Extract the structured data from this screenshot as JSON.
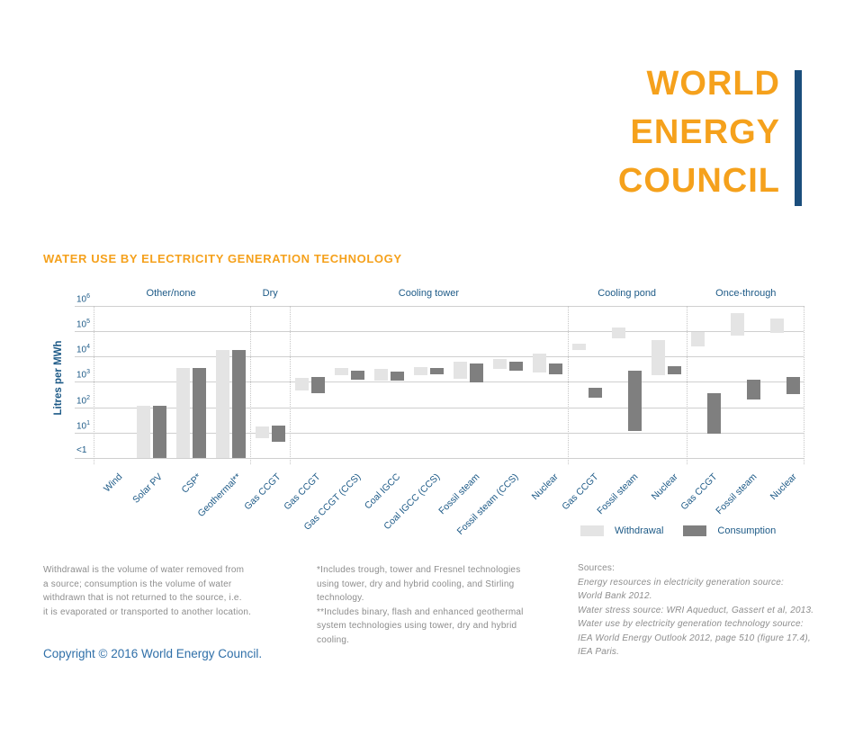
{
  "logo": {
    "lines": [
      "WORLD",
      "ENERGY",
      "COUNCIL"
    ],
    "text_color": "#f5a11c",
    "bar_color": "#1b4e7c"
  },
  "chart_data": {
    "type": "bar",
    "subtype": "floating_range_bars",
    "title": "WATER USE BY ELECTRICITY GENERATION TECHNOLOGY",
    "ylabel": "Litres per MWh",
    "y_scale": "log10",
    "y_ticks": [
      {
        "base": "10",
        "exp": "6"
      },
      {
        "base": "10",
        "exp": "5"
      },
      {
        "base": "10",
        "exp": "4"
      },
      {
        "base": "10",
        "exp": "3"
      },
      {
        "base": "10",
        "exp": "2"
      },
      {
        "base": "10",
        "exp": "1"
      },
      {
        "base": "<1",
        "exp": ""
      }
    ],
    "y_range": [
      1,
      1000000
    ],
    "grid": true,
    "legend_position": "bottom-right",
    "series_names": [
      "Withdrawal",
      "Consumption"
    ],
    "legend": [
      {
        "label": "Withdrawal",
        "color": "#e4e4e4"
      },
      {
        "label": "Consumption",
        "color": "#7f7f7f"
      }
    ],
    "groups": [
      "Other/none",
      "Dry",
      "Cooling tower",
      "Cooling pond",
      "Once-through"
    ],
    "categories": [
      {
        "label": "Wind",
        "group": "Other/none",
        "withdrawal": null,
        "consumption": null
      },
      {
        "label": "Solar PV",
        "group": "Other/none",
        "withdrawal": [
          1,
          110
        ],
        "consumption": [
          1,
          110
        ]
      },
      {
        "label": "CSP*",
        "group": "Other/none",
        "withdrawal": [
          1,
          3500
        ],
        "consumption": [
          1,
          3500
        ]
      },
      {
        "label": "Geothermal**",
        "group": "Other/none",
        "withdrawal": [
          1,
          18000
        ],
        "consumption": [
          1,
          18000
        ]
      },
      {
        "label": "Gas CCGT",
        "group": "Dry",
        "withdrawal": [
          6,
          18
        ],
        "consumption": [
          4.5,
          19
        ]
      },
      {
        "label": "Gas CCGT",
        "group": "Cooling tower",
        "withdrawal": [
          460,
          1400
        ],
        "consumption": [
          370,
          1550
        ]
      },
      {
        "label": "Gas CCGT (CCS)",
        "group": "Cooling tower",
        "withdrawal": [
          1900,
          3500
        ],
        "consumption": [
          1250,
          2800
        ]
      },
      {
        "label": "Coal IGCC",
        "group": "Cooling tower",
        "withdrawal": [
          1100,
          3300
        ],
        "consumption": [
          1100,
          2600
        ]
      },
      {
        "label": "Coal IGCC (CCS)",
        "group": "Cooling tower",
        "withdrawal": [
          1800,
          3700
        ],
        "consumption": [
          2000,
          3500
        ]
      },
      {
        "label": "Fossil steam",
        "group": "Cooling tower",
        "withdrawal": [
          1300,
          6100
        ],
        "consumption": [
          950,
          5300
        ]
      },
      {
        "label": "Fossil steam (CCS)",
        "group": "Cooling tower",
        "withdrawal": [
          3300,
          7900
        ],
        "consumption": [
          2700,
          6400
        ]
      },
      {
        "label": "Nuclear",
        "group": "Cooling tower",
        "withdrawal": [
          2400,
          12600
        ],
        "consumption": [
          2000,
          5300
        ]
      },
      {
        "label": "Gas CCGT",
        "group": "Cooling pond",
        "withdrawal": [
          17500,
          32000
        ],
        "consumption": [
          230,
          580
        ]
      },
      {
        "label": "Fossil steam",
        "group": "Cooling pond",
        "withdrawal": [
          54000,
          138000
        ],
        "consumption": [
          12,
          2800
        ]
      },
      {
        "label": "Nuclear",
        "group": "Cooling pond",
        "withdrawal": [
          1800,
          45000
        ],
        "consumption": [
          2000,
          4300
        ]
      },
      {
        "label": "Gas CCGT",
        "group": "Once-through",
        "withdrawal": [
          25000,
          90000
        ],
        "consumption": [
          9,
          350
        ]
      },
      {
        "label": "Fossil steam",
        "group": "Once-through",
        "withdrawal": [
          70000,
          500000
        ],
        "consumption": [
          200,
          1250
        ]
      },
      {
        "label": "Nuclear",
        "group": "Once-through",
        "withdrawal": [
          85000,
          310000
        ],
        "consumption": [
          320,
          1560
        ]
      }
    ]
  },
  "footnotes": {
    "definition": {
      "lines": [
        "Withdrawal is the volume of water removed from",
        "a source; consumption is the volume of water",
        "withdrawn that is not returned to the source, i.e.",
        "it is evaporated or transported to another location."
      ]
    },
    "technology": {
      "lines": [
        "*Includes trough, tower and Fresnel technologies",
        "using tower, dry and hybrid cooling, and Stirling",
        "technology.",
        "**Includes binary, flash and enhanced geothermal",
        "system technologies using tower, dry and hybrid",
        "cooling."
      ]
    },
    "sources": {
      "heading": "Sources:",
      "lines": [
        "Energy resources in electricity generation source:",
        "World Bank 2012.",
        "Water stress source: WRI Aqueduct, Gassert et al, 2013.",
        "Water use by electricity generation technology source:",
        "IEA World Energy Outlook 2012, page 510 (figure 17.4),",
        "IEA Paris."
      ]
    }
  },
  "copyright": "Copyright © 2016 World Energy Council.",
  "colors": {
    "accent_orange": "#f5a11c",
    "brand_navy": "#1b4e7c",
    "text_blue": "#1d5a87",
    "withdrawal_gray": "#e4e4e4",
    "consumption_gray": "#7f7f7f",
    "grid_gray": "#cfcfcf",
    "footnote_gray": "#8d8d8d",
    "copyright_blue": "#2f6fa8"
  }
}
